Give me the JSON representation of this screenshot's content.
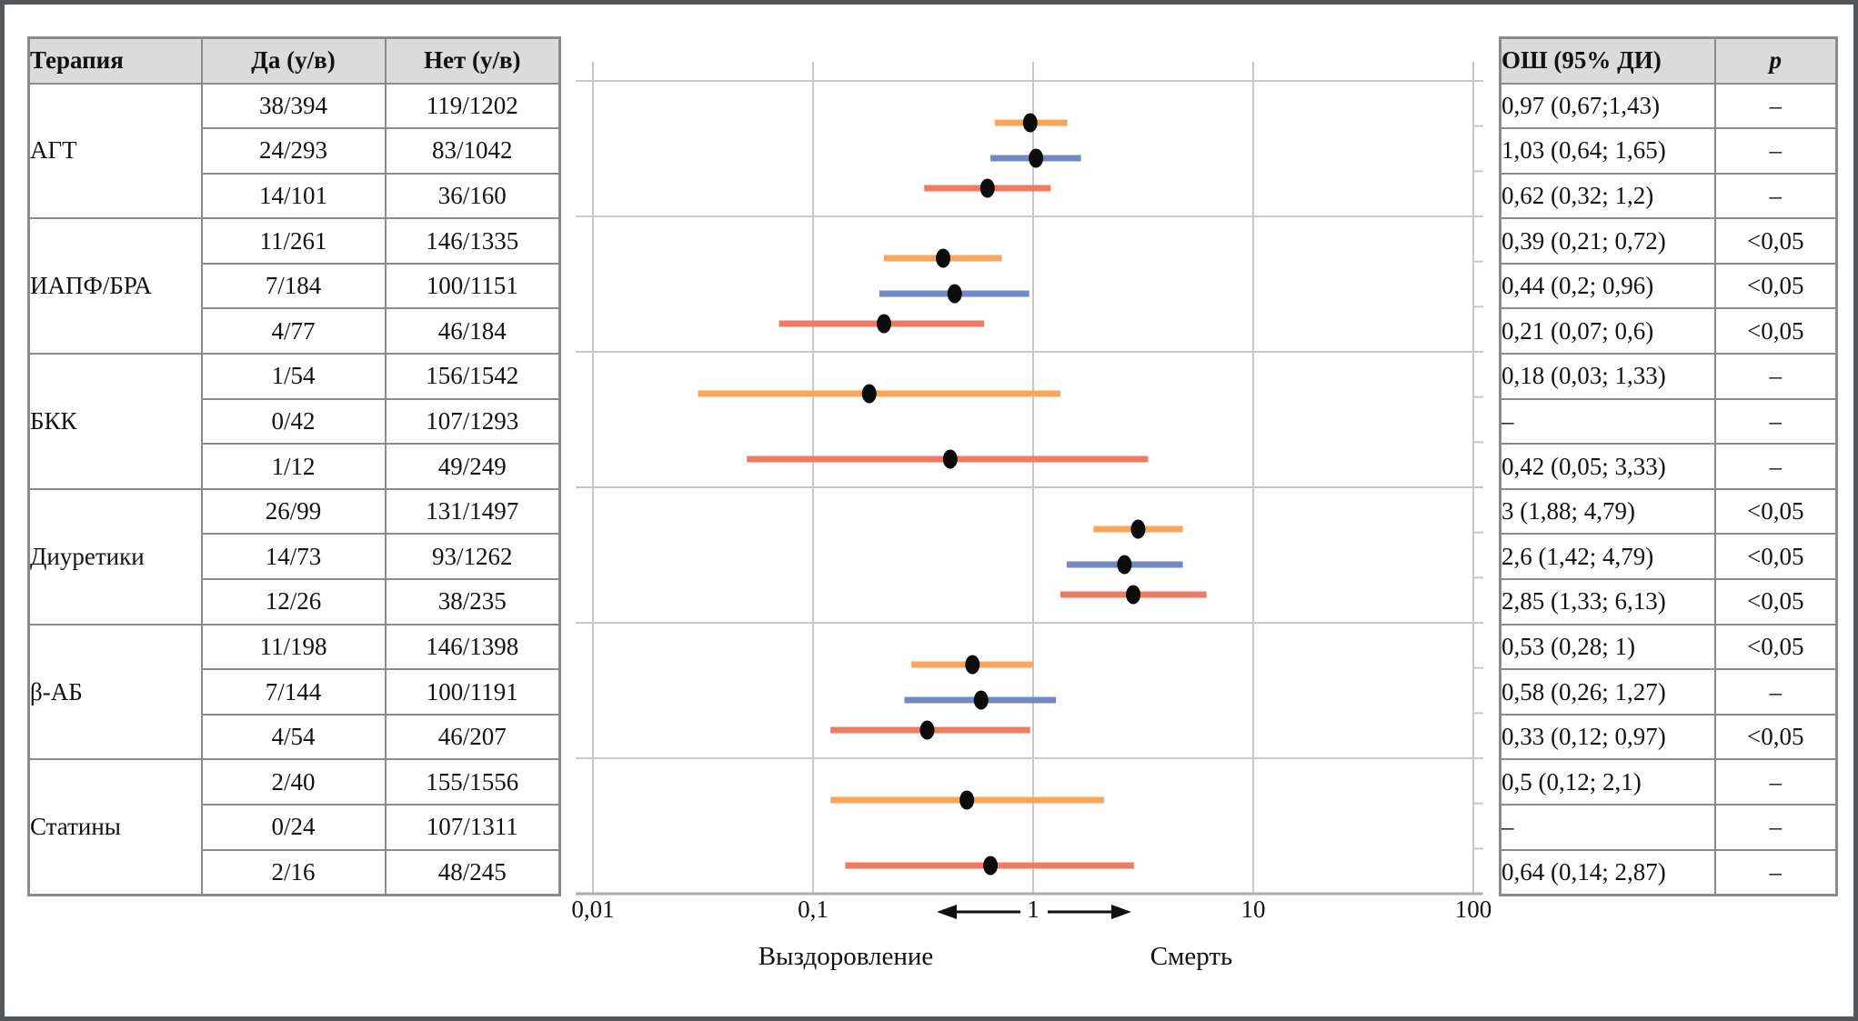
{
  "style": {
    "series_colors": [
      "#F8A65B",
      "#7289C6",
      "#F17B62"
    ],
    "marker_color": "#0c0c0c",
    "grid_color": "#c8c8c8",
    "axis_color": "#adadad",
    "table_border_color": "#8a8a8a",
    "header_bg": "#dbdbdb",
    "frame_border_color": "#54575a"
  },
  "left_table": {
    "headers": [
      "Терапия",
      "Да (у/в)",
      "Нет (у/в)"
    ],
    "groups": [
      {
        "therapy": "АГТ",
        "rows": [
          [
            "38/394",
            "119/1202"
          ],
          [
            "24/293",
            "83/1042"
          ],
          [
            "14/101",
            "36/160"
          ]
        ]
      },
      {
        "therapy": "ИАПФ/БРА",
        "rows": [
          [
            "11/261",
            "146/1335"
          ],
          [
            "7/184",
            "100/1151"
          ],
          [
            "4/77",
            "46/184"
          ]
        ]
      },
      {
        "therapy": "БКК",
        "rows": [
          [
            "1/54",
            "156/1542"
          ],
          [
            "0/42",
            "107/1293"
          ],
          [
            "1/12",
            "49/249"
          ]
        ]
      },
      {
        "therapy": "Диуретики",
        "rows": [
          [
            "26/99",
            "131/1497"
          ],
          [
            "14/73",
            "93/1262"
          ],
          [
            "12/26",
            "38/235"
          ]
        ]
      },
      {
        "therapy": "β-АБ",
        "rows": [
          [
            "11/198",
            "146/1398"
          ],
          [
            "7/144",
            "100/1191"
          ],
          [
            "4/54",
            "46/207"
          ]
        ]
      },
      {
        "therapy": "Статины",
        "rows": [
          [
            "2/40",
            "155/1556"
          ],
          [
            "0/24",
            "107/1311"
          ],
          [
            "2/16",
            "48/245"
          ]
        ]
      }
    ]
  },
  "right_table": {
    "headers": [
      "ОШ (95% ДИ)",
      "p"
    ],
    "rows": [
      [
        "0,97 (0,67;1,43)",
        "–"
      ],
      [
        "1,03 (0,64; 1,65)",
        "–"
      ],
      [
        "0,62 (0,32; 1,2)",
        "–"
      ],
      [
        "0,39 (0,21; 0,72)",
        "<0,05"
      ],
      [
        "0,44 (0,2; 0,96)",
        "<0,05"
      ],
      [
        "0,21 (0,07; 0,6)",
        "<0,05"
      ],
      [
        "0,18 (0,03; 1,33)",
        "–"
      ],
      [
        "–",
        "–"
      ],
      [
        "0,42 (0,05; 3,33)",
        "–"
      ],
      [
        "3 (1,88; 4,79)",
        "<0,05"
      ],
      [
        "2,6 (1,42; 4,79)",
        "<0,05"
      ],
      [
        "2,85 (1,33; 6,13)",
        "<0,05"
      ],
      [
        "0,53 (0,28; 1)",
        "<0,05"
      ],
      [
        "0,58 (0,26; 1,27)",
        "–"
      ],
      [
        "0,33 (0,12; 0,97)",
        "<0,05"
      ],
      [
        "0,5 (0,12; 2,1)",
        "–"
      ],
      [
        "–",
        "–"
      ],
      [
        "0,64 (0,14; 2,87)",
        "–"
      ]
    ]
  },
  "chart_data": {
    "type": "scatter",
    "subtype": "forest-plot",
    "x_scale": "log10",
    "x_ticks": [
      "0,01",
      "0,1",
      "1",
      "10",
      "100"
    ],
    "x_tick_values": [
      0.01,
      0.1,
      1,
      10,
      100
    ],
    "xlim": [
      0.01,
      100
    ],
    "grid": true,
    "direction_left_label": "Выздоровление",
    "direction_right_label": "Смерть",
    "groups": [
      {
        "name": "АГТ",
        "estimates": [
          {
            "or": 0.97,
            "lo": 0.67,
            "hi": 1.43,
            "p": "–"
          },
          {
            "or": 1.03,
            "lo": 0.64,
            "hi": 1.65,
            "p": "–"
          },
          {
            "or": 0.62,
            "lo": 0.32,
            "hi": 1.2,
            "p": "–"
          }
        ]
      },
      {
        "name": "ИАПФ/БРА",
        "estimates": [
          {
            "or": 0.39,
            "lo": 0.21,
            "hi": 0.72,
            "p": "<0,05"
          },
          {
            "or": 0.44,
            "lo": 0.2,
            "hi": 0.96,
            "p": "<0,05"
          },
          {
            "or": 0.21,
            "lo": 0.07,
            "hi": 0.6,
            "p": "<0,05"
          }
        ]
      },
      {
        "name": "БКК",
        "estimates": [
          {
            "or": 0.18,
            "lo": 0.03,
            "hi": 1.33,
            "p": "–"
          },
          null,
          {
            "or": 0.42,
            "lo": 0.05,
            "hi": 3.33,
            "p": "–"
          }
        ]
      },
      {
        "name": "Диуретики",
        "estimates": [
          {
            "or": 3,
            "lo": 1.88,
            "hi": 4.79,
            "p": "<0,05"
          },
          {
            "or": 2.6,
            "lo": 1.42,
            "hi": 4.79,
            "p": "<0,05"
          },
          {
            "or": 2.85,
            "lo": 1.33,
            "hi": 6.13,
            "p": "<0,05"
          }
        ]
      },
      {
        "name": "β-АБ",
        "estimates": [
          {
            "or": 0.53,
            "lo": 0.28,
            "hi": 1,
            "p": "<0,05"
          },
          {
            "or": 0.58,
            "lo": 0.26,
            "hi": 1.27,
            "p": "–"
          },
          {
            "or": 0.33,
            "lo": 0.12,
            "hi": 0.97,
            "p": "<0,05"
          }
        ]
      },
      {
        "name": "Статины",
        "estimates": [
          {
            "or": 0.5,
            "lo": 0.12,
            "hi": 2.1,
            "p": "–"
          },
          null,
          {
            "or": 0.64,
            "lo": 0.14,
            "hi": 2.87,
            "p": "–"
          }
        ]
      }
    ]
  }
}
